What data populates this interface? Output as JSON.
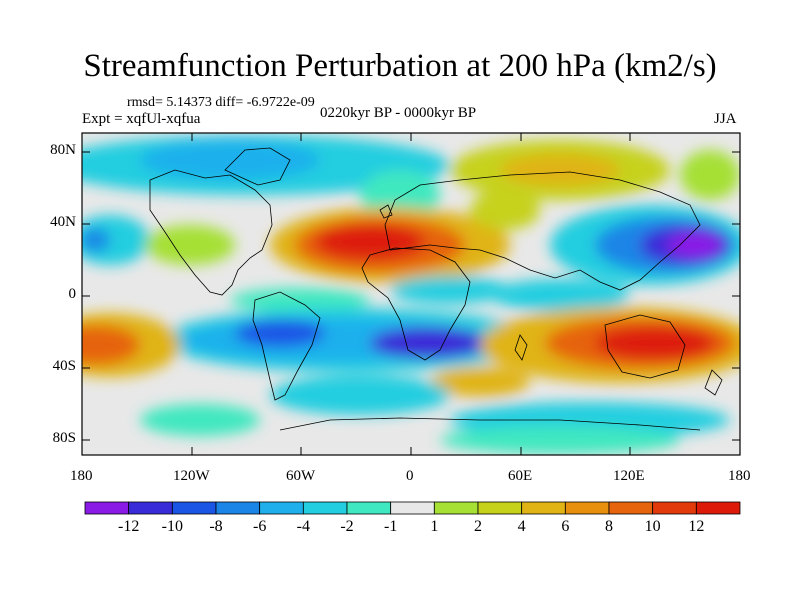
{
  "title": "Streamfunction Perturbation at 200 hPa (km2/s)",
  "stats": "rmsd= 5.14373  diff= -6.9722e-09",
  "experiment": "Expt = xqfUl-xqfua",
  "period": "0220kyr BP - 0000kyr BP",
  "season": "JJA",
  "map": {
    "lat_labels": [
      "80N",
      "40N",
      "0",
      "40S",
      "80S"
    ],
    "lon_labels": [
      "180",
      "120W",
      "60W",
      "0",
      "60E",
      "120E",
      "180"
    ]
  },
  "colorbar": {
    "labels": [
      "-12",
      "-10",
      "-8",
      "-6",
      "-4",
      "-2",
      "-1",
      "1",
      "2",
      "4",
      "6",
      "8",
      "10",
      "12"
    ],
    "colors": [
      "#8a1ae6",
      "#3a2bd8",
      "#1a55e6",
      "#1a85e6",
      "#1fb0ec",
      "#22cee0",
      "#3fe8c0",
      "#e8e8e8",
      "#a6e034",
      "#c6d21a",
      "#e0b414",
      "#e6900e",
      "#e6640c",
      "#e23a0a",
      "#dd1a0a"
    ]
  }
}
